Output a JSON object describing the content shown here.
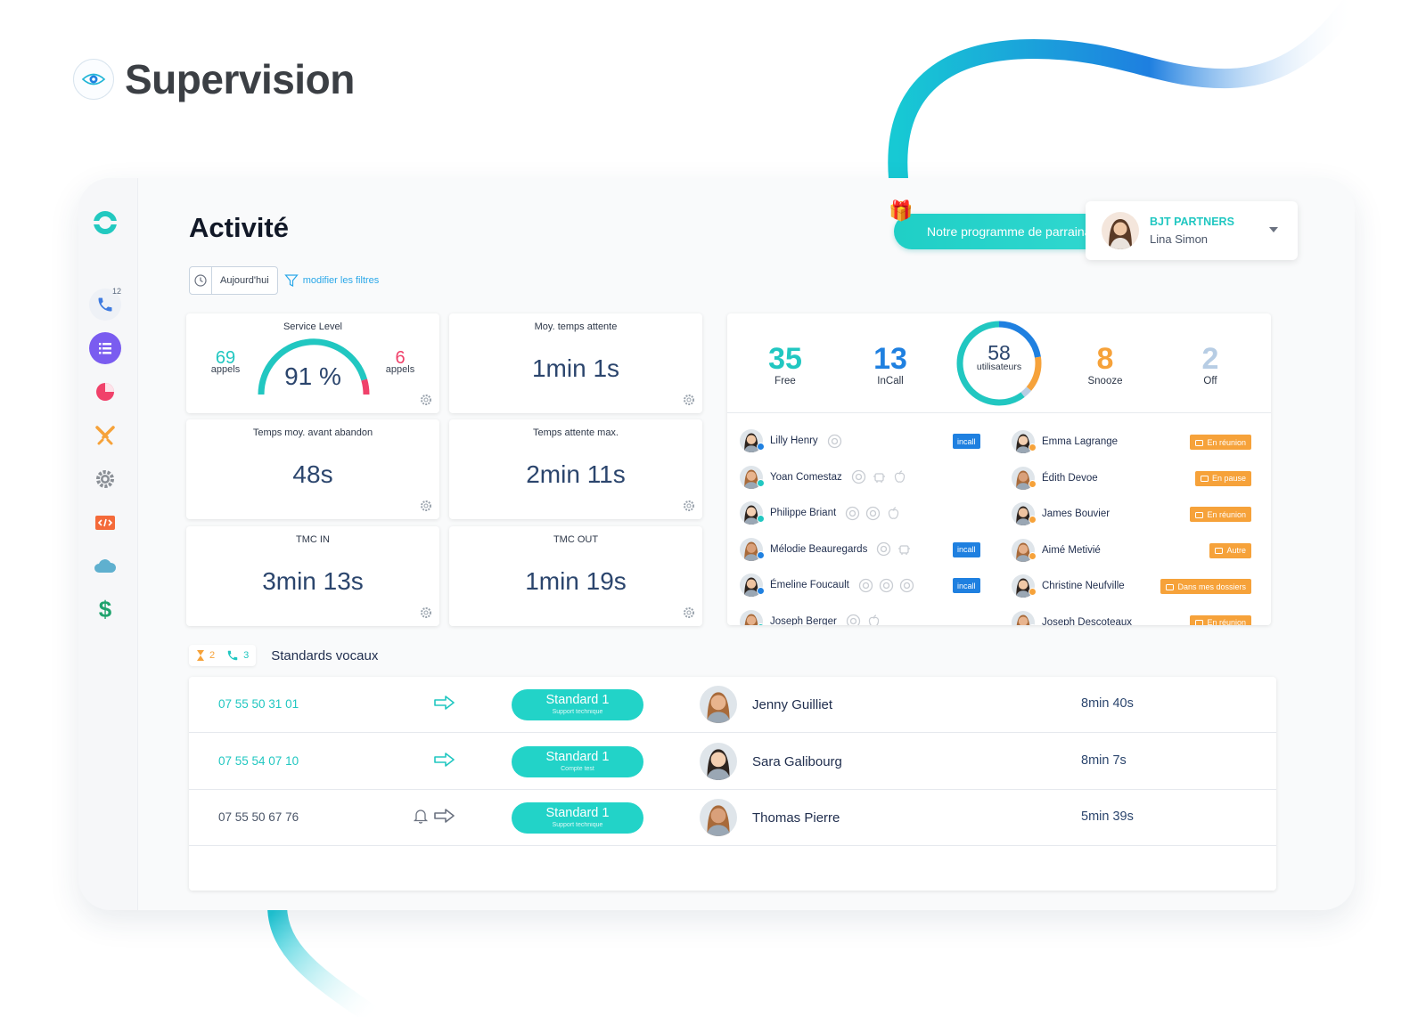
{
  "heading": {
    "title": "Supervision"
  },
  "sidebar": {
    "calls_badge": "12"
  },
  "header": {
    "title": "Activité",
    "referral_label": "Notre programme de parrainage",
    "company": "BJT PARTNERS",
    "user": "Lina Simon"
  },
  "filters": {
    "date_label": "Aujourd'hui",
    "modify_label": "modifier les filtres"
  },
  "service_level": {
    "title": "Service Level",
    "left_value": "69",
    "left_label": "appels",
    "value": "91 %",
    "right_value": "6",
    "right_label": "appels",
    "percent": 91
  },
  "metrics": [
    {
      "title": "Moy. temps attente",
      "value": "1min 1s"
    },
    {
      "title": "Temps moy. avant abandon",
      "value": "48s"
    },
    {
      "title": "Temps attente max.",
      "value": "2min 11s"
    },
    {
      "title": "TMC IN",
      "value": "3min 13s"
    },
    {
      "title": "TMC OUT",
      "value": "1min 19s"
    }
  ],
  "user_stats": {
    "free": {
      "value": "35",
      "label": "Free",
      "color": "#21c7c1"
    },
    "incall": {
      "value": "13",
      "label": "InCall",
      "color": "#1f80e0"
    },
    "total": {
      "value": "58",
      "label": "utilisateurs"
    },
    "snooze": {
      "value": "8",
      "label": "Snooze",
      "color": "#f6a23a"
    },
    "off": {
      "value": "2",
      "label": "Off",
      "color": "#b7cde4"
    }
  },
  "users_left": [
    {
      "name": "Lilly Henry",
      "badge": "incall"
    },
    {
      "name": "Yoan Comestaz",
      "badge": ""
    },
    {
      "name": "Philippe Briant",
      "badge": ""
    },
    {
      "name": "Mélodie Beauregards",
      "badge": "incall"
    },
    {
      "name": "Émeline Foucault",
      "badge": "incall"
    },
    {
      "name": "Joseph Berger",
      "badge": ""
    }
  ],
  "users_right": [
    {
      "name": "Emma Lagrange",
      "status": "En réunion"
    },
    {
      "name": "Édith Devoe",
      "status": "En pause"
    },
    {
      "name": "James Bouvier",
      "status": "En réunion"
    },
    {
      "name": "Aimé Metivié",
      "status": "Autre"
    },
    {
      "name": "Christine Neufville",
      "status": "Dans mes dossiers"
    },
    {
      "name": "Joseph Descoteaux",
      "status": "En réunion"
    }
  ],
  "standards": {
    "title": "Standards vocaux",
    "waiting": "2",
    "calls": "3"
  },
  "rows": [
    {
      "number": "07 55 50 31 01",
      "standard": "Standard 1",
      "sub": "Support technique",
      "name": "Jenny Guilliet",
      "duration": "8min 40s"
    },
    {
      "number": "07 55 54 07 10",
      "standard": "Standard 1",
      "sub": "Compte test",
      "name": "Sara Galibourg",
      "duration": "8min 7s"
    },
    {
      "number": "07 55 50 67 76",
      "standard": "Standard 1",
      "sub": "Support technique",
      "name": "Thomas Pierre",
      "duration": "5min 39s"
    }
  ]
}
